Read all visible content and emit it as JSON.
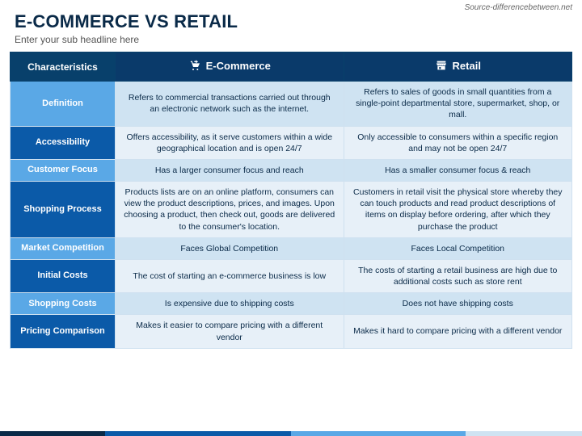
{
  "source_credit": "Source-differencebetween.net",
  "title": "E-COMMERCE VS RETAIL",
  "subheadline": "Enter your sub headline here",
  "colors": {
    "header_dark": "#0a3a6a",
    "header_darker": "#08406b",
    "label_light": "#5aa8e6",
    "label_dark": "#0b5aa8",
    "cell_band_a": "#cfe3f2",
    "cell_band_b": "#e7f0f8",
    "title_color": "#0a2a48",
    "footer": [
      "#0a2a48",
      "#0b5aa8",
      "#5aa8e6",
      "#cfe3f2"
    ]
  },
  "columns": {
    "c0": "Characteristics",
    "c1": "E-Commerce",
    "c2": "Retail"
  },
  "rows": [
    {
      "label": "Definition",
      "label_bg": "#5aa8e6",
      "band": "a",
      "ecom": "Refers to commercial transactions carried out through an electronic network such as the internet.",
      "retail": "Refers to sales of goods in small quantities from a single-point departmental store, supermarket, shop, or mall."
    },
    {
      "label": "Accessibility",
      "label_bg": "#0b5aa8",
      "band": "b",
      "ecom": "Offers accessibility, as it serve customers within a wide geographical location and is open 24/7",
      "retail": "Only accessible to consumers within a specific region and may not be open 24/7"
    },
    {
      "label": "Customer Focus",
      "label_bg": "#5aa8e6",
      "band": "a",
      "ecom": "Has a larger consumer focus and reach",
      "retail": "Has a smaller consumer focus & reach"
    },
    {
      "label": "Shopping Process",
      "label_bg": "#0b5aa8",
      "band": "b",
      "ecom": "Products lists are on an online platform, consumers can view the product descriptions, prices, and images. Upon choosing a product, then check out, goods are delivered to the consumer's location.",
      "retail": "Customers in retail visit the physical store whereby they can touch products and read product descriptions of items on display before ordering, after which they purchase the product"
    },
    {
      "label": "Market Competition",
      "label_bg": "#5aa8e6",
      "band": "a",
      "ecom": "Faces Global Competition",
      "retail": "Faces Local Competition"
    },
    {
      "label": "Initial Costs",
      "label_bg": "#0b5aa8",
      "band": "b",
      "ecom": "The cost of starting an e-commerce business is low",
      "retail": "The costs of starting a retail business are high due to additional costs such as store rent"
    },
    {
      "label": "Shopping Costs",
      "label_bg": "#5aa8e6",
      "band": "a",
      "ecom": "Is expensive due to shipping costs",
      "retail": "Does not have shipping costs"
    },
    {
      "label": "Pricing Comparison",
      "label_bg": "#0b5aa8",
      "band": "b",
      "ecom": "Makes it easier to compare pricing with a different vendor",
      "retail": "Makes it hard to compare pricing with a different vendor"
    }
  ]
}
